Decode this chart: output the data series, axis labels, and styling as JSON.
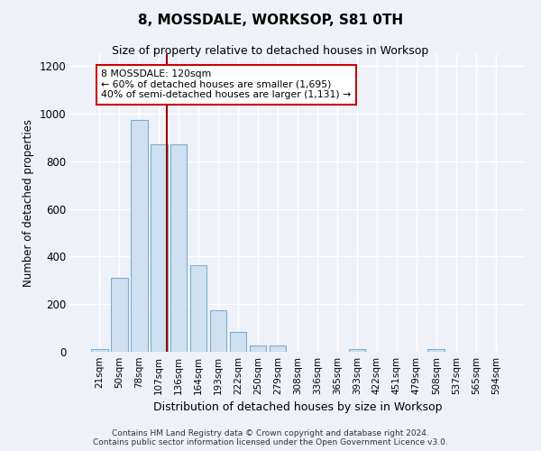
{
  "title": "8, MOSSDALE, WORKSOP, S81 0TH",
  "subtitle": "Size of property relative to detached houses in Worksop",
  "xlabel": "Distribution of detached houses by size in Worksop",
  "ylabel": "Number of detached properties",
  "bar_color": "#cfe0f0",
  "bar_edge_color": "#7bafd4",
  "categories": [
    "21sqm",
    "50sqm",
    "78sqm",
    "107sqm",
    "136sqm",
    "164sqm",
    "193sqm",
    "222sqm",
    "250sqm",
    "279sqm",
    "308sqm",
    "336sqm",
    "365sqm",
    "393sqm",
    "422sqm",
    "451sqm",
    "479sqm",
    "508sqm",
    "537sqm",
    "565sqm",
    "594sqm"
  ],
  "values": [
    13,
    310,
    975,
    870,
    870,
    365,
    175,
    85,
    27,
    25,
    0,
    0,
    0,
    12,
    0,
    0,
    0,
    12,
    0,
    0,
    0
  ],
  "vline_x_index": 3.42,
  "vline_color": "#990000",
  "annotation_text": "8 MOSSDALE: 120sqm\n← 60% of detached houses are smaller (1,695)\n40% of semi-detached houses are larger (1,131) →",
  "box_color": "#ffffff",
  "box_edge_color": "#cc0000",
  "ylim": [
    0,
    1250
  ],
  "yticks": [
    0,
    200,
    400,
    600,
    800,
    1000,
    1200
  ],
  "footer": "Contains HM Land Registry data © Crown copyright and database right 2024.\nContains public sector information licensed under the Open Government Licence v3.0.",
  "background_color": "#eef2f8",
  "grid_color": "#ffffff"
}
